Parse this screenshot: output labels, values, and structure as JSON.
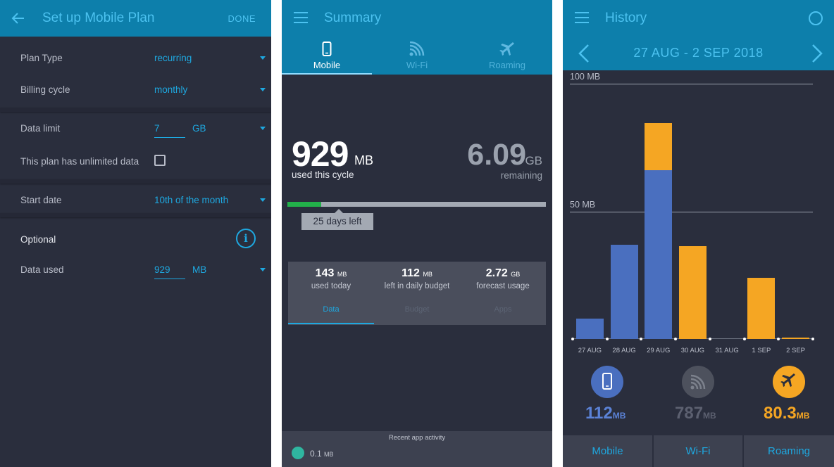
{
  "setup": {
    "title": "Set up Mobile Plan",
    "done": "DONE",
    "plan_type": {
      "label": "Plan Type",
      "value": "recurring"
    },
    "billing_cycle": {
      "label": "Billing cycle",
      "value": "monthly"
    },
    "data_limit": {
      "label": "Data limit",
      "value": "7",
      "unit": "GB"
    },
    "unlimited": {
      "label": "This plan has unlimited data",
      "checked": false
    },
    "start_date": {
      "label": "Start date",
      "value": "10th of the month"
    },
    "optional": "Optional",
    "data_used": {
      "label": "Data used",
      "value": "929",
      "unit": "MB"
    }
  },
  "summary": {
    "title": "Summary",
    "tabs": [
      {
        "label": "Mobile",
        "icon": "phone-icon",
        "active": true
      },
      {
        "label": "Wi-Fi",
        "icon": "wifi-icon",
        "active": false
      },
      {
        "label": "Roaming",
        "icon": "plane-icon",
        "active": false
      }
    ],
    "used": {
      "value": "929",
      "unit": "MB",
      "label": "used this cycle"
    },
    "remaining": {
      "value": "6.09",
      "unit": "GB",
      "label": "remaining"
    },
    "cycle_progress": 0.13,
    "days_left": "25 days left",
    "stats": [
      {
        "value": "143",
        "unit": "MB",
        "label": "used today"
      },
      {
        "value": "112",
        "unit": "MB",
        "label": "left in daily budget"
      },
      {
        "value": "2.72",
        "unit": "GB",
        "label": "forecast usage"
      }
    ],
    "subtabs": [
      {
        "label": "Data",
        "active": true
      },
      {
        "label": "Budget",
        "active": false
      },
      {
        "label": "Apps",
        "active": false
      }
    ],
    "recent": {
      "title": "Recent app activity",
      "value": "0.1",
      "unit": "MB"
    }
  },
  "history": {
    "title": "History",
    "range": "27 AUG - 2 SEP 2018",
    "y_label_top": "100 MB",
    "y_label_mid": "50 MB",
    "totals": [
      {
        "name": "Mobile",
        "value": "112",
        "unit": "MB",
        "color": "#4a6fbf",
        "icon": "phone-icon"
      },
      {
        "name": "Wi-Fi",
        "value": "787",
        "unit": "MB",
        "color": "#6d717c",
        "icon": "wifi-icon"
      },
      {
        "name": "Roaming",
        "value": "80.3",
        "unit": "MB",
        "color": "#f5a623",
        "icon": "plane-icon"
      }
    ],
    "bottom_tabs": [
      "Mobile",
      "Wi-Fi",
      "Roaming"
    ]
  },
  "chart_data": {
    "type": "bar",
    "categories": [
      "27 AUG",
      "28 AUG",
      "29 AUG",
      "30 AUG",
      "31 AUG",
      "1 SEP",
      "2 SEP"
    ],
    "series": [
      {
        "name": "Mobile",
        "values": [
          8,
          37,
          66,
          0,
          0,
          0,
          0
        ],
        "color": "#4a6fbf"
      },
      {
        "name": "Roaming",
        "values": [
          0,
          0,
          18.5,
          36.5,
          0,
          24,
          0.5
        ],
        "color": "#f5a623"
      }
    ],
    "ylim": [
      0,
      100
    ],
    "ylabel": "",
    "xlabel": "",
    "stacked": true,
    "grid": true
  }
}
